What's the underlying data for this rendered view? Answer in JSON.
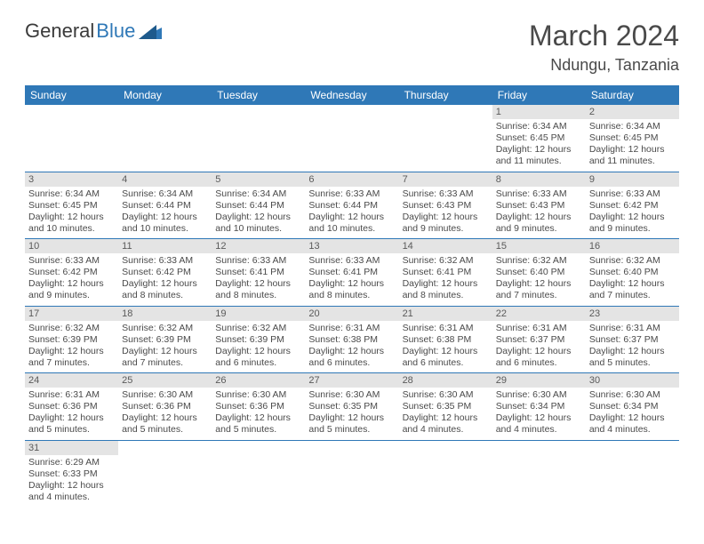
{
  "logo": {
    "text1": "General",
    "text2": "Blue"
  },
  "title": "March 2024",
  "location": "Ndungu, Tanzania",
  "colors": {
    "header_bg": "#2f78b7",
    "header_fg": "#ffffff",
    "daynum_bg": "#e4e4e4",
    "row_border": "#2f78b7",
    "text": "#4a4a4a"
  },
  "weekdays": [
    "Sunday",
    "Monday",
    "Tuesday",
    "Wednesday",
    "Thursday",
    "Friday",
    "Saturday"
  ],
  "weeks": [
    [
      {
        "n": "",
        "lines": []
      },
      {
        "n": "",
        "lines": []
      },
      {
        "n": "",
        "lines": []
      },
      {
        "n": "",
        "lines": []
      },
      {
        "n": "",
        "lines": []
      },
      {
        "n": "1",
        "lines": [
          "Sunrise: 6:34 AM",
          "Sunset: 6:45 PM",
          "Daylight: 12 hours",
          "and 11 minutes."
        ]
      },
      {
        "n": "2",
        "lines": [
          "Sunrise: 6:34 AM",
          "Sunset: 6:45 PM",
          "Daylight: 12 hours",
          "and 11 minutes."
        ]
      }
    ],
    [
      {
        "n": "3",
        "lines": [
          "Sunrise: 6:34 AM",
          "Sunset: 6:45 PM",
          "Daylight: 12 hours",
          "and 10 minutes."
        ]
      },
      {
        "n": "4",
        "lines": [
          "Sunrise: 6:34 AM",
          "Sunset: 6:44 PM",
          "Daylight: 12 hours",
          "and 10 minutes."
        ]
      },
      {
        "n": "5",
        "lines": [
          "Sunrise: 6:34 AM",
          "Sunset: 6:44 PM",
          "Daylight: 12 hours",
          "and 10 minutes."
        ]
      },
      {
        "n": "6",
        "lines": [
          "Sunrise: 6:33 AM",
          "Sunset: 6:44 PM",
          "Daylight: 12 hours",
          "and 10 minutes."
        ]
      },
      {
        "n": "7",
        "lines": [
          "Sunrise: 6:33 AM",
          "Sunset: 6:43 PM",
          "Daylight: 12 hours",
          "and 9 minutes."
        ]
      },
      {
        "n": "8",
        "lines": [
          "Sunrise: 6:33 AM",
          "Sunset: 6:43 PM",
          "Daylight: 12 hours",
          "and 9 minutes."
        ]
      },
      {
        "n": "9",
        "lines": [
          "Sunrise: 6:33 AM",
          "Sunset: 6:42 PM",
          "Daylight: 12 hours",
          "and 9 minutes."
        ]
      }
    ],
    [
      {
        "n": "10",
        "lines": [
          "Sunrise: 6:33 AM",
          "Sunset: 6:42 PM",
          "Daylight: 12 hours",
          "and 9 minutes."
        ]
      },
      {
        "n": "11",
        "lines": [
          "Sunrise: 6:33 AM",
          "Sunset: 6:42 PM",
          "Daylight: 12 hours",
          "and 8 minutes."
        ]
      },
      {
        "n": "12",
        "lines": [
          "Sunrise: 6:33 AM",
          "Sunset: 6:41 PM",
          "Daylight: 12 hours",
          "and 8 minutes."
        ]
      },
      {
        "n": "13",
        "lines": [
          "Sunrise: 6:33 AM",
          "Sunset: 6:41 PM",
          "Daylight: 12 hours",
          "and 8 minutes."
        ]
      },
      {
        "n": "14",
        "lines": [
          "Sunrise: 6:32 AM",
          "Sunset: 6:41 PM",
          "Daylight: 12 hours",
          "and 8 minutes."
        ]
      },
      {
        "n": "15",
        "lines": [
          "Sunrise: 6:32 AM",
          "Sunset: 6:40 PM",
          "Daylight: 12 hours",
          "and 7 minutes."
        ]
      },
      {
        "n": "16",
        "lines": [
          "Sunrise: 6:32 AM",
          "Sunset: 6:40 PM",
          "Daylight: 12 hours",
          "and 7 minutes."
        ]
      }
    ],
    [
      {
        "n": "17",
        "lines": [
          "Sunrise: 6:32 AM",
          "Sunset: 6:39 PM",
          "Daylight: 12 hours",
          "and 7 minutes."
        ]
      },
      {
        "n": "18",
        "lines": [
          "Sunrise: 6:32 AM",
          "Sunset: 6:39 PM",
          "Daylight: 12 hours",
          "and 7 minutes."
        ]
      },
      {
        "n": "19",
        "lines": [
          "Sunrise: 6:32 AM",
          "Sunset: 6:39 PM",
          "Daylight: 12 hours",
          "and 6 minutes."
        ]
      },
      {
        "n": "20",
        "lines": [
          "Sunrise: 6:31 AM",
          "Sunset: 6:38 PM",
          "Daylight: 12 hours",
          "and 6 minutes."
        ]
      },
      {
        "n": "21",
        "lines": [
          "Sunrise: 6:31 AM",
          "Sunset: 6:38 PM",
          "Daylight: 12 hours",
          "and 6 minutes."
        ]
      },
      {
        "n": "22",
        "lines": [
          "Sunrise: 6:31 AM",
          "Sunset: 6:37 PM",
          "Daylight: 12 hours",
          "and 6 minutes."
        ]
      },
      {
        "n": "23",
        "lines": [
          "Sunrise: 6:31 AM",
          "Sunset: 6:37 PM",
          "Daylight: 12 hours",
          "and 5 minutes."
        ]
      }
    ],
    [
      {
        "n": "24",
        "lines": [
          "Sunrise: 6:31 AM",
          "Sunset: 6:36 PM",
          "Daylight: 12 hours",
          "and 5 minutes."
        ]
      },
      {
        "n": "25",
        "lines": [
          "Sunrise: 6:30 AM",
          "Sunset: 6:36 PM",
          "Daylight: 12 hours",
          "and 5 minutes."
        ]
      },
      {
        "n": "26",
        "lines": [
          "Sunrise: 6:30 AM",
          "Sunset: 6:36 PM",
          "Daylight: 12 hours",
          "and 5 minutes."
        ]
      },
      {
        "n": "27",
        "lines": [
          "Sunrise: 6:30 AM",
          "Sunset: 6:35 PM",
          "Daylight: 12 hours",
          "and 5 minutes."
        ]
      },
      {
        "n": "28",
        "lines": [
          "Sunrise: 6:30 AM",
          "Sunset: 6:35 PM",
          "Daylight: 12 hours",
          "and 4 minutes."
        ]
      },
      {
        "n": "29",
        "lines": [
          "Sunrise: 6:30 AM",
          "Sunset: 6:34 PM",
          "Daylight: 12 hours",
          "and 4 minutes."
        ]
      },
      {
        "n": "30",
        "lines": [
          "Sunrise: 6:30 AM",
          "Sunset: 6:34 PM",
          "Daylight: 12 hours",
          "and 4 minutes."
        ]
      }
    ],
    [
      {
        "n": "31",
        "lines": [
          "Sunrise: 6:29 AM",
          "Sunset: 6:33 PM",
          "Daylight: 12 hours",
          "and 4 minutes."
        ]
      },
      {
        "n": "",
        "lines": []
      },
      {
        "n": "",
        "lines": []
      },
      {
        "n": "",
        "lines": []
      },
      {
        "n": "",
        "lines": []
      },
      {
        "n": "",
        "lines": []
      },
      {
        "n": "",
        "lines": []
      }
    ]
  ]
}
